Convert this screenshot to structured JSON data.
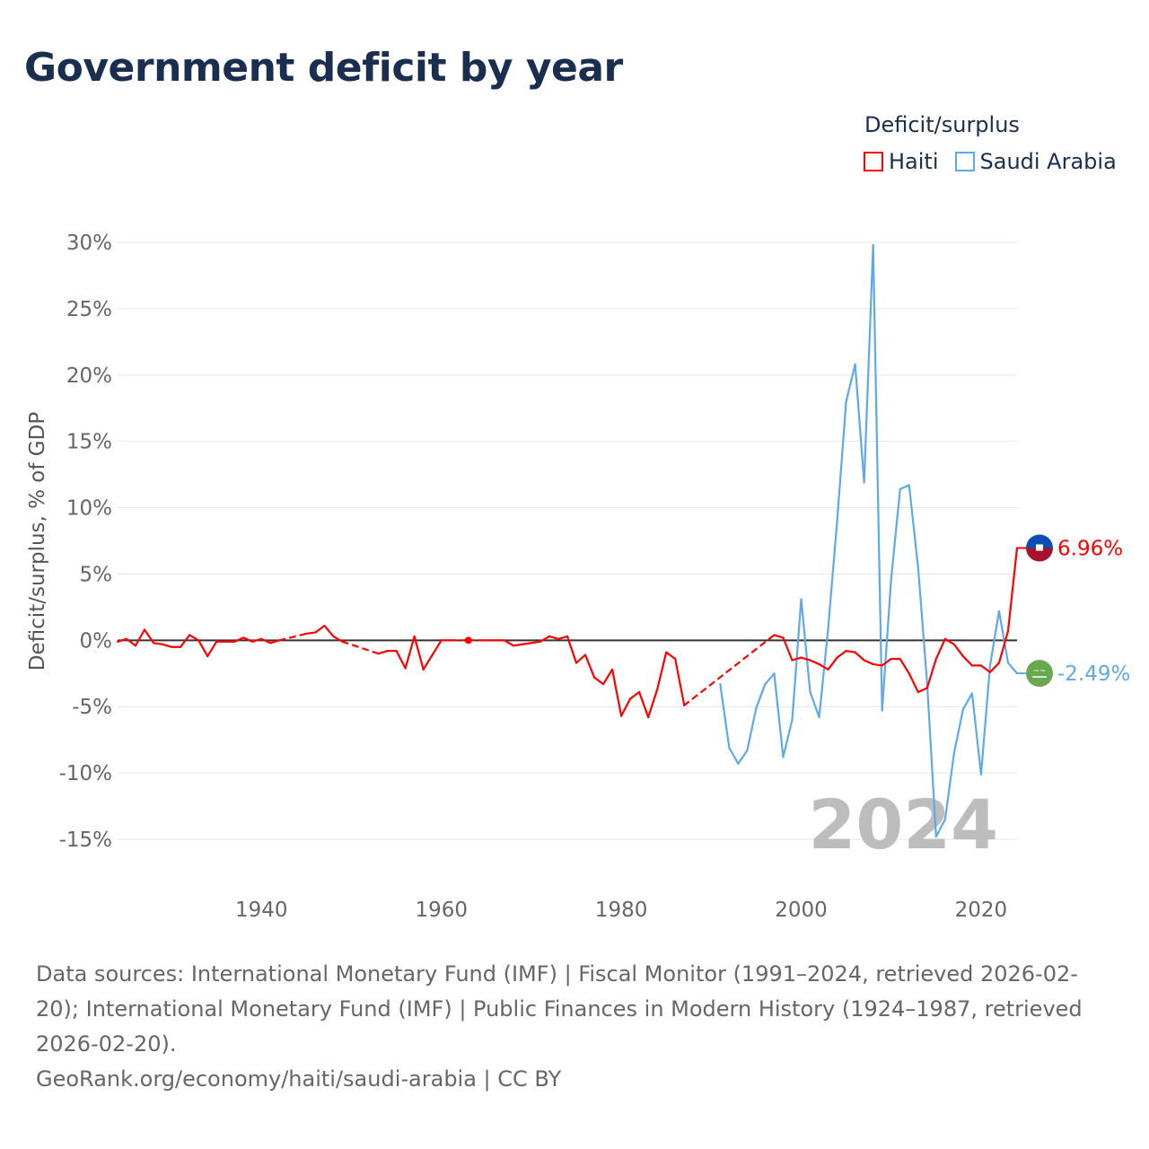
{
  "title": "Government deficit by year",
  "legend": {
    "title": "Deficit/surplus",
    "items": [
      {
        "name": "Haiti",
        "color": "#ff0000"
      },
      {
        "name": "Saudi Arabia",
        "color": "#5fa8ec"
      }
    ]
  },
  "chart_data": {
    "type": "line",
    "title": "Government deficit by year",
    "xlabel": "",
    "ylabel": "Deficit/surplus, % of GDP",
    "xlim": [
      1924,
      2024
    ],
    "ylim": [
      -15,
      30
    ],
    "x_ticks": [
      1940,
      1960,
      1980,
      2000,
      2020
    ],
    "y_ticks": [
      30,
      25,
      20,
      15,
      10,
      5,
      0,
      -5,
      -10,
      -15
    ],
    "y_tick_labels": [
      "30%",
      "25%",
      "20%",
      "15%",
      "10%",
      "5%",
      "0%",
      "-5%",
      "-10%",
      "-15%"
    ],
    "grid": true,
    "watermark_year": "2024",
    "series": [
      {
        "name": "Haiti",
        "color": "#ff0000",
        "end_label": "6.96%",
        "points": [
          [
            1924,
            -0.1
          ],
          [
            1925,
            0.1
          ],
          [
            1926,
            -0.4
          ],
          [
            1927,
            0.8
          ],
          [
            1928,
            -0.2
          ],
          [
            1929,
            -0.3
          ],
          [
            1930,
            -0.5
          ],
          [
            1931,
            -0.5
          ],
          [
            1932,
            0.4
          ],
          [
            1933,
            0.0
          ],
          [
            1934,
            -1.2
          ],
          [
            1935,
            -0.1
          ],
          [
            1936,
            -0.1
          ],
          [
            1937,
            -0.1
          ],
          [
            1938,
            0.2
          ],
          [
            1939,
            -0.1
          ],
          [
            1940,
            0.1
          ],
          [
            1941,
            -0.2
          ],
          [
            1942,
            0.0
          ],
          [
            1945,
            0.5
          ],
          [
            1946,
            0.6
          ],
          [
            1947,
            1.1
          ],
          [
            1948,
            0.3
          ],
          [
            1949,
            -0.1
          ],
          [
            1953,
            -1.0
          ],
          [
            1954,
            -0.8
          ],
          [
            1955,
            -0.8
          ],
          [
            1956,
            -2.1
          ],
          [
            1957,
            0.3
          ],
          [
            1958,
            -2.2
          ],
          [
            1959,
            -1.1
          ],
          [
            1960,
            0.0
          ],
          [
            1961,
            0.0
          ],
          [
            1963,
            0.0
          ],
          [
            1965,
            0.0
          ],
          [
            1966,
            0.0
          ],
          [
            1967,
            0.0
          ],
          [
            1968,
            -0.4
          ],
          [
            1969,
            -0.3
          ],
          [
            1970,
            -0.2
          ],
          [
            1971,
            -0.1
          ],
          [
            1972,
            0.3
          ],
          [
            1973,
            0.1
          ],
          [
            1974,
            0.3
          ],
          [
            1975,
            -1.7
          ],
          [
            1976,
            -1.1
          ],
          [
            1977,
            -2.8
          ],
          [
            1978,
            -3.3
          ],
          [
            1979,
            -2.2
          ],
          [
            1980,
            -5.7
          ],
          [
            1981,
            -4.4
          ],
          [
            1982,
            -3.9
          ],
          [
            1983,
            -5.8
          ],
          [
            1984,
            -3.7
          ],
          [
            1985,
            -0.9
          ],
          [
            1986,
            -1.4
          ],
          [
            1987,
            -4.9
          ],
          [
            1997,
            0.4
          ],
          [
            1998,
            0.2
          ],
          [
            1999,
            -1.5
          ],
          [
            2000,
            -1.3
          ],
          [
            2001,
            -1.5
          ],
          [
            2002,
            -1.8
          ],
          [
            2003,
            -2.2
          ],
          [
            2004,
            -1.3
          ],
          [
            2005,
            -0.8
          ],
          [
            2006,
            -0.9
          ],
          [
            2007,
            -1.5
          ],
          [
            2008,
            -1.8
          ],
          [
            2009,
            -1.9
          ],
          [
            2010,
            -1.4
          ],
          [
            2011,
            -1.4
          ],
          [
            2012,
            -2.5
          ],
          [
            2013,
            -3.9
          ],
          [
            2014,
            -3.6
          ],
          [
            2015,
            -1.4
          ],
          [
            2016,
            0.1
          ],
          [
            2017,
            -0.3
          ],
          [
            2018,
            -1.2
          ],
          [
            2019,
            -1.9
          ],
          [
            2020,
            -1.9
          ],
          [
            2021,
            -2.4
          ],
          [
            2022,
            -1.7
          ],
          [
            2023,
            0.7
          ],
          [
            2024,
            6.96
          ]
        ]
      },
      {
        "name": "Saudi Arabia",
        "color": "#5fa8ec",
        "end_label": "-2.49%",
        "points": [
          [
            1991,
            -3.3
          ],
          [
            1992,
            -8.1
          ],
          [
            1993,
            -9.3
          ],
          [
            1994,
            -8.3
          ],
          [
            1995,
            -5.1
          ],
          [
            1996,
            -3.3
          ],
          [
            1997,
            -2.5
          ],
          [
            1998,
            -8.8
          ],
          [
            1999,
            -6.0
          ],
          [
            2000,
            3.1
          ],
          [
            2001,
            -3.9
          ],
          [
            2002,
            -5.8
          ],
          [
            2003,
            0.9
          ],
          [
            2004,
            9.0
          ],
          [
            2005,
            18.0
          ],
          [
            2006,
            20.8
          ],
          [
            2007,
            11.9
          ],
          [
            2008,
            29.8
          ],
          [
            2009,
            -5.3
          ],
          [
            2010,
            4.6
          ],
          [
            2011,
            11.4
          ],
          [
            2012,
            11.7
          ],
          [
            2013,
            5.5
          ],
          [
            2014,
            -3.2
          ],
          [
            2015,
            -14.8
          ],
          [
            2016,
            -13.5
          ],
          [
            2017,
            -8.5
          ],
          [
            2018,
            -5.2
          ],
          [
            2019,
            -4.0
          ],
          [
            2020,
            -10.1
          ],
          [
            2021,
            -1.9
          ],
          [
            2022,
            2.2
          ],
          [
            2023,
            -1.7
          ],
          [
            2024,
            -2.49
          ]
        ]
      }
    ]
  },
  "sources": {
    "line1": "Data sources: International Monetary Fund (IMF) | Fiscal Monitor (1991–2024, retrieved 2026-02-20); International Monetary Fund (IMF) | Public Finances in Modern History (1924–1987, retrieved 2026-02-20).",
    "line2": "GeoRank.org/economy/haiti/saudi-arabia | CC BY"
  }
}
